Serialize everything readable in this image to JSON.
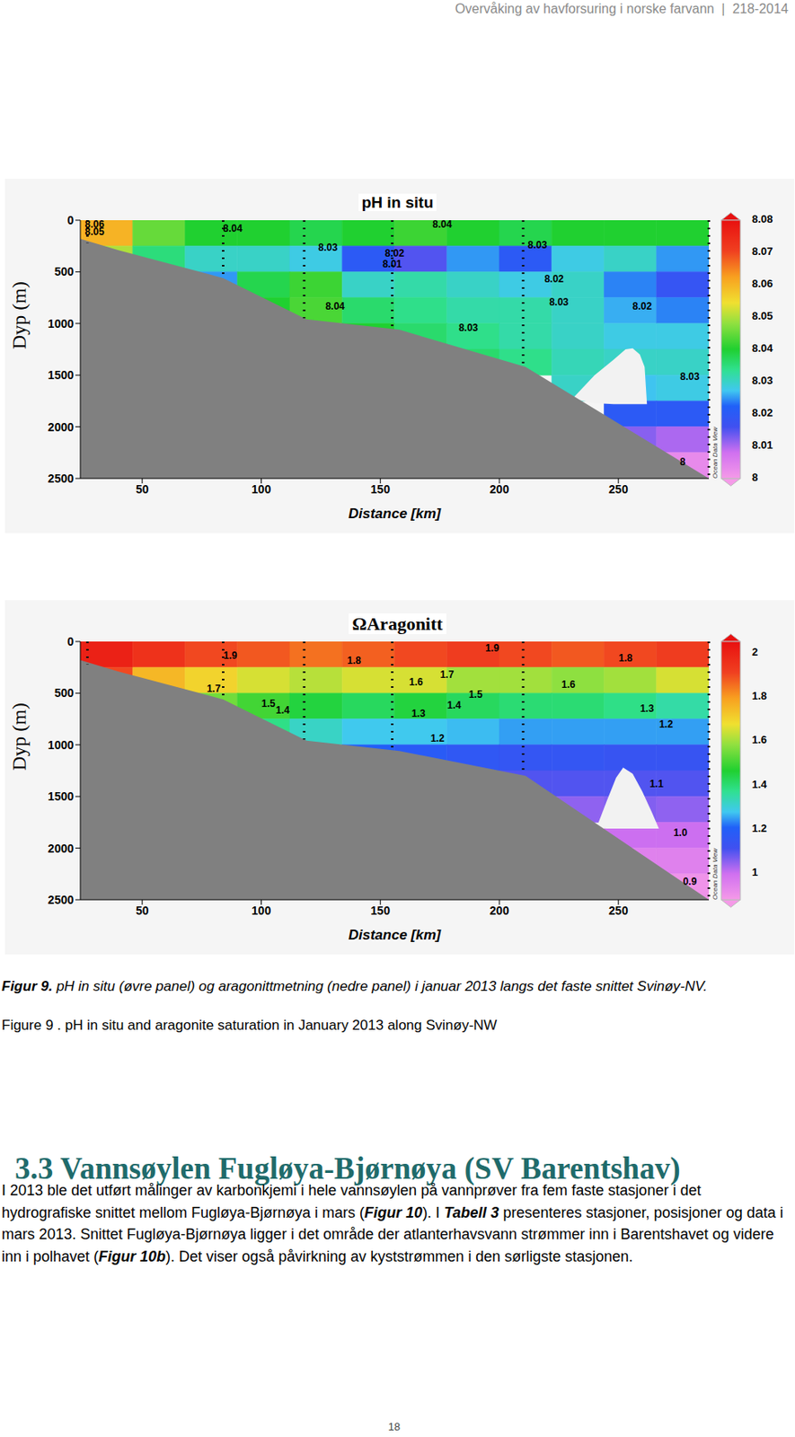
{
  "header": "Overvåking av havforsuring i norske farvann  |  218-2014",
  "chart_data": [
    {
      "type": "heatmap",
      "title": "pH in situ",
      "xlabel": "Distance [km]",
      "ylabel": "Dyp (m)",
      "xlim": [
        24,
        288
      ],
      "xticks": [
        50,
        100,
        150,
        200,
        250
      ],
      "ylim": [
        0,
        2500
      ],
      "yticks": [
        0,
        500,
        1000,
        1500,
        2000,
        2500
      ],
      "cells": {
        "x_edges": [
          24,
          46,
          68,
          90,
          112,
          134,
          156,
          178,
          200,
          222,
          244,
          266,
          288
        ],
        "depth_edges": [
          0,
          250,
          500,
          750,
          1000,
          1250,
          1500,
          1750,
          2000,
          2250,
          2500
        ],
        "values": [
          [
            8.06,
            8.045,
            8.04,
            8.04,
            8.038,
            8.04,
            8.042,
            8.04,
            8.038,
            8.04,
            8.04,
            8.04
          ],
          [
            8.05,
            8.035,
            8.03,
            8.03,
            8.028,
            8.02,
            8.015,
            8.025,
            8.02,
            8.028,
            8.03,
            8.025
          ],
          [
            null,
            null,
            8.025,
            8.038,
            8.042,
            8.03,
            8.032,
            8.03,
            8.028,
            8.03,
            8.024,
            8.018
          ],
          [
            null,
            null,
            null,
            8.04,
            8.043,
            8.036,
            8.034,
            8.032,
            8.032,
            8.03,
            8.026,
            8.024
          ],
          [
            null,
            null,
            null,
            null,
            null,
            8.04,
            8.036,
            8.034,
            8.032,
            8.03,
            8.028,
            8.028
          ],
          [
            null,
            null,
            null,
            null,
            null,
            null,
            null,
            8.036,
            8.034,
            8.031,
            8.03,
            8.03
          ],
          [
            null,
            null,
            null,
            null,
            null,
            null,
            null,
            null,
            null,
            8.03,
            8.027,
            8.028
          ],
          [
            null,
            null,
            null,
            null,
            null,
            null,
            null,
            null,
            null,
            null,
            8.02,
            8.02
          ],
          [
            null,
            null,
            null,
            null,
            null,
            null,
            null,
            null,
            null,
            null,
            8.012,
            8.01
          ],
          [
            null,
            null,
            null,
            null,
            null,
            null,
            null,
            null,
            null,
            null,
            null,
            8.003
          ]
        ]
      },
      "colorbar": {
        "range": [
          8,
          8.08
        ],
        "ticks": [
          8,
          8.01,
          8.02,
          8.03,
          8.04,
          8.05,
          8.06,
          8.07,
          8.08
        ]
      },
      "bathymetry": [
        {
          "x": 24,
          "depth": 180
        },
        {
          "x": 40,
          "depth": 290
        },
        {
          "x": 84,
          "depth": 560
        },
        {
          "x": 119,
          "depth": 960
        },
        {
          "x": 158,
          "depth": 1060
        },
        {
          "x": 211,
          "depth": 1420
        },
        {
          "x": 288,
          "depth": 2500
        }
      ],
      "gap": [
        {
          "x": 231,
          "top": 1720,
          "bottom": 1730
        },
        {
          "x": 240,
          "top": 1500,
          "bottom": 1770
        },
        {
          "x": 248,
          "top": 1350,
          "bottom": 1780
        },
        {
          "x": 253,
          "top": 1250,
          "bottom": 1780
        },
        {
          "x": 256,
          "top": 1240,
          "bottom": 1780
        },
        {
          "x": 259,
          "top": 1300,
          "bottom": 1780
        },
        {
          "x": 261,
          "top": 1420,
          "bottom": 1780
        },
        {
          "x": 262,
          "top": 1780,
          "bottom": 1780
        }
      ],
      "stations": [
        {
          "x": 27,
          "depth": 220
        },
        {
          "x": 84,
          "depth": 560
        },
        {
          "x": 118,
          "depth": 950
        },
        {
          "x": 155,
          "depth": 1060
        },
        {
          "x": 210,
          "depth": 1415
        },
        {
          "x": 288,
          "depth": 2480
        }
      ],
      "annotations": [
        {
          "text": "8.06",
          "x": 30,
          "y": 45
        },
        {
          "text": "8.05",
          "x": 30,
          "y": 120
        },
        {
          "text": "8.04",
          "x": 88,
          "y": 89
        },
        {
          "text": "8.04",
          "x": 176,
          "y": 44
        },
        {
          "text": "8.03",
          "x": 128,
          "y": 275
        },
        {
          "text": "8.02",
          "x": 156,
          "y": 328
        },
        {
          "text": "8.01",
          "x": 155,
          "y": 434
        },
        {
          "text": "8.03",
          "x": 216,
          "y": 248
        },
        {
          "text": "8.02",
          "x": 223,
          "y": 576
        },
        {
          "text": "8.03",
          "x": 225,
          "y": 800
        },
        {
          "text": "8.04",
          "x": 131,
          "y": 842
        },
        {
          "text": "8.03",
          "x": 187,
          "y": 1046
        },
        {
          "text": "8.02",
          "x": 260,
          "y": 842
        },
        {
          "text": "8.03",
          "x": 280,
          "y": 1525
        },
        {
          "text": "8",
          "x": 277,
          "y": 2350
        }
      ],
      "credit": "Ocean Data View"
    },
    {
      "type": "heatmap",
      "title": "ΩAragonitt",
      "xlabel": "Distance [km]",
      "ylabel": "Dyp (m)",
      "xlim": [
        24,
        288
      ],
      "xticks": [
        50,
        100,
        150,
        200,
        250
      ],
      "ylim": [
        0,
        2500
      ],
      "yticks": [
        0,
        500,
        1000,
        1500,
        2000,
        2500
      ],
      "cells": {
        "x_edges": [
          24,
          46,
          68,
          90,
          112,
          134,
          156,
          178,
          200,
          222,
          244,
          266,
          288
        ],
        "depth_edges": [
          0,
          250,
          500,
          750,
          1000,
          1250,
          1500,
          1750,
          2000,
          2250,
          2500
        ],
        "values": [
          [
            2.0,
            1.95,
            1.9,
            1.88,
            1.85,
            1.87,
            1.9,
            1.92,
            1.9,
            1.88,
            1.9,
            1.92
          ],
          [
            1.9,
            1.75,
            1.7,
            1.65,
            1.62,
            1.65,
            1.65,
            1.6,
            1.6,
            1.58,
            1.6,
            1.65
          ],
          [
            null,
            null,
            1.55,
            1.5,
            1.45,
            1.42,
            1.45,
            1.42,
            1.4,
            1.4,
            1.38,
            1.35
          ],
          [
            null,
            null,
            null,
            1.38,
            1.32,
            1.28,
            1.28,
            1.27,
            1.25,
            1.25,
            1.25,
            1.25
          ],
          [
            null,
            null,
            null,
            null,
            null,
            1.2,
            1.18,
            1.16,
            1.15,
            1.15,
            1.14,
            1.14
          ],
          [
            null,
            null,
            null,
            null,
            null,
            null,
            null,
            1.12,
            1.1,
            1.1,
            1.1,
            1.1
          ],
          [
            null,
            null,
            null,
            null,
            null,
            null,
            null,
            null,
            null,
            1.05,
            1.06,
            1.05
          ],
          [
            null,
            null,
            null,
            null,
            null,
            null,
            null,
            null,
            null,
            null,
            1.0,
            1.0
          ],
          [
            null,
            null,
            null,
            null,
            null,
            null,
            null,
            null,
            null,
            null,
            0.95,
            0.95
          ],
          [
            null,
            null,
            null,
            null,
            null,
            null,
            null,
            null,
            null,
            null,
            null,
            0.9
          ]
        ]
      },
      "colorbar": {
        "range": [
          0.88,
          2.05
        ],
        "ticks": [
          1,
          1.2,
          1.4,
          1.6,
          1.8,
          2
        ]
      },
      "bathymetry": [
        {
          "x": 24,
          "depth": 180
        },
        {
          "x": 40,
          "depth": 290
        },
        {
          "x": 84,
          "depth": 560
        },
        {
          "x": 119,
          "depth": 960
        },
        {
          "x": 158,
          "depth": 1060
        },
        {
          "x": 211,
          "depth": 1300
        },
        {
          "x": 288,
          "depth": 2500
        }
      ],
      "gap": [
        {
          "x": 241,
          "top": 1790,
          "bottom": 1800
        },
        {
          "x": 245,
          "top": 1550,
          "bottom": 1810
        },
        {
          "x": 249,
          "top": 1320,
          "bottom": 1810
        },
        {
          "x": 252,
          "top": 1220,
          "bottom": 1810
        },
        {
          "x": 256,
          "top": 1280,
          "bottom": 1810
        },
        {
          "x": 260,
          "top": 1450,
          "bottom": 1810
        },
        {
          "x": 264,
          "top": 1650,
          "bottom": 1810
        },
        {
          "x": 267,
          "top": 1810,
          "bottom": 1810
        }
      ],
      "stations": [
        {
          "x": 27,
          "depth": 220
        },
        {
          "x": 84,
          "depth": 560
        },
        {
          "x": 118,
          "depth": 950
        },
        {
          "x": 155,
          "depth": 1060
        },
        {
          "x": 210,
          "depth": 1290
        },
        {
          "x": 288,
          "depth": 2480
        }
      ],
      "annotations": [
        {
          "text": "1.9",
          "x": 87,
          "y": 141
        },
        {
          "text": "1.8",
          "x": 139,
          "y": 194
        },
        {
          "text": "1.9",
          "x": 197,
          "y": 71
        },
        {
          "text": "1.8",
          "x": 253,
          "y": 168
        },
        {
          "text": "1.7",
          "x": 80,
          "y": 460
        },
        {
          "text": "1.6",
          "x": 165,
          "y": 398
        },
        {
          "text": "1.7",
          "x": 178,
          "y": 327
        },
        {
          "text": "1.6",
          "x": 229,
          "y": 424
        },
        {
          "text": "1.5",
          "x": 103,
          "y": 610
        },
        {
          "text": "1.4",
          "x": 109,
          "y": 670
        },
        {
          "text": "1.5",
          "x": 190,
          "y": 521
        },
        {
          "text": "1.4",
          "x": 181,
          "y": 627
        },
        {
          "text": "1.3",
          "x": 166,
          "y": 707
        },
        {
          "text": "1.3",
          "x": 262,
          "y": 654
        },
        {
          "text": "1.2",
          "x": 270,
          "y": 804
        },
        {
          "text": "1.2",
          "x": 174,
          "y": 945
        },
        {
          "text": "1.1",
          "x": 266,
          "y": 1387
        },
        {
          "text": "1.0",
          "x": 276,
          "y": 1855
        },
        {
          "text": "0.9",
          "x": 280,
          "y": 2330
        }
      ],
      "credit": "Ocean Data View"
    }
  ],
  "caption": {
    "no": [
      {
        "text": "Figur 9.",
        "emphasis": true
      },
      {
        "text": " pH in situ (øvre panel) og aragonittmetning (nedre panel) i januar 2013 langs det faste snittet Svinøy-NV."
      }
    ],
    "en": "Figure 9 . pH in situ and aragonite saturation in January 2013 along Svinøy-NW"
  },
  "section": {
    "heading": "3.3 Vannsøylen Fugløya-Bjørnøya (SV Barentshav)",
    "paragraph": [
      {
        "text": "I 2013 ble det utført målinger av karbonkjemi i hele vannsøylen på vannprøver fra fem faste stasjoner i det hydrografiske snittet mellom Fugløya-Bjørnøya i mars ("
      },
      {
        "text": "Figur 10",
        "emphasis": true
      },
      {
        "text": "). I "
      },
      {
        "text": "Tabell 3",
        "emphasis": true
      },
      {
        "text": " presenteres stasjoner, posisjoner og data i mars 2013. Snittet Fugløya-Bjørnøya ligger i det område der atlanterhavsvann strømmer inn i Barentshavet og videre inn i polhavet ("
      },
      {
        "text": "Figur 10b",
        "emphasis": true
      },
      {
        "text": "). Det viser også påvirkning av kyststrømmen i den sørligste stasjonen."
      }
    ]
  },
  "page_number": "18"
}
